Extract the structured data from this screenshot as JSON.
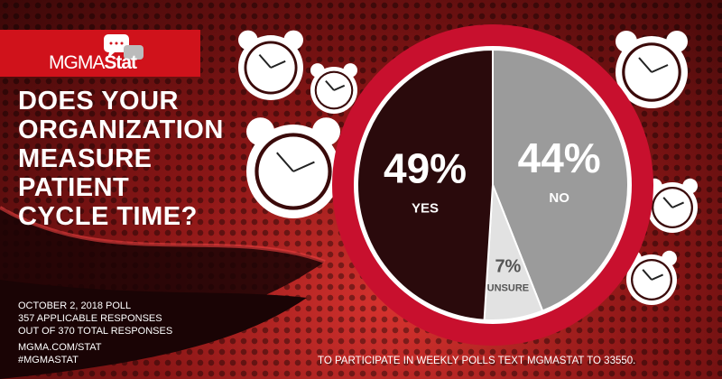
{
  "logo": {
    "text_light": "MGMA",
    "text_bold": "Stat"
  },
  "question": [
    "DOES YOUR",
    "ORGANIZATION",
    "MEASURE",
    "PATIENT",
    "CYCLE TIME?"
  ],
  "poll_info": [
    "OCTOBER 2, 2018 POLL",
    "357 APPLICABLE RESPONSES",
    "OUT OF 370 TOTAL RESPONSES"
  ],
  "links": [
    "MGMA.COM/STAT",
    "#MGMASTAT"
  ],
  "cta": "TO PARTICIPATE IN WEEKLY POLLS TEXT MGMASTAT TO 33550.",
  "icons": [
    "speech-bubbles-icon",
    "alarm-clock-icon"
  ],
  "colors": {
    "brand_red": "#d0121b",
    "ring": "#c8102e"
  },
  "chart_data": {
    "type": "pie",
    "start": "top",
    "direction": "clockwise",
    "slices": [
      {
        "label": "NO",
        "value": 44,
        "display": "44%",
        "color": "#9b9b9b"
      },
      {
        "label": "UNSURE",
        "value": 7,
        "display": "7%",
        "color": "#e2e2e2"
      },
      {
        "label": "YES",
        "value": 49,
        "display": "49%",
        "color": "#2a0a0c"
      }
    ]
  }
}
